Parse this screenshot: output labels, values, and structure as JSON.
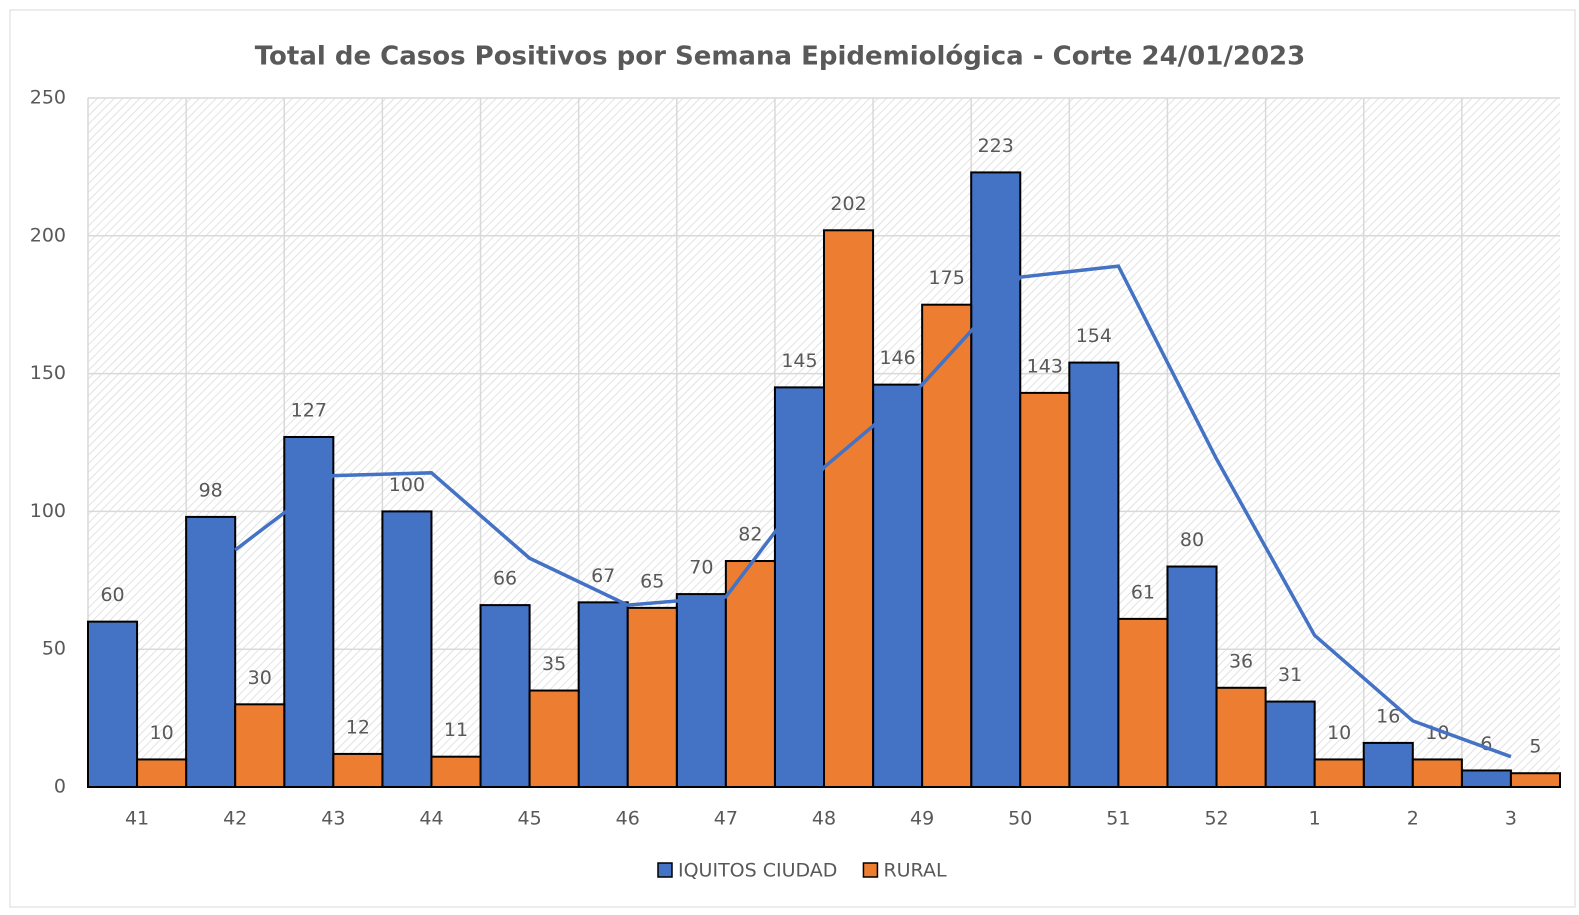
{
  "chart_data": {
    "type": "bar",
    "title": "Total de Casos Positivos por Semana Epidemiológica - Corte 24/01/2023",
    "categories": [
      "41",
      "42",
      "43",
      "44",
      "45",
      "46",
      "47",
      "48",
      "49",
      "50",
      "51",
      "52",
      "1",
      "2",
      "3"
    ],
    "series": [
      {
        "name": "IQUITOS CIUDAD",
        "color": "#4472c4",
        "values": [
          60,
          98,
          127,
          100,
          66,
          67,
          70,
          145,
          146,
          223,
          154,
          80,
          31,
          16,
          6
        ]
      },
      {
        "name": "RURAL",
        "color": "#ed7d31",
        "values": [
          10,
          30,
          12,
          11,
          35,
          65,
          82,
          202,
          175,
          143,
          61,
          36,
          10,
          10,
          5
        ]
      },
      {
        "type": "line",
        "color": "#4472c4",
        "values": [
          null,
          86,
          113,
          114,
          83,
          66,
          69,
          116,
          146,
          185,
          189,
          119,
          55,
          24,
          11
        ]
      }
    ],
    "ylim": [
      0,
      250
    ],
    "yticks": [
      0,
      50,
      100,
      150,
      200,
      250
    ],
    "grid": true,
    "legend": "bottom"
  }
}
